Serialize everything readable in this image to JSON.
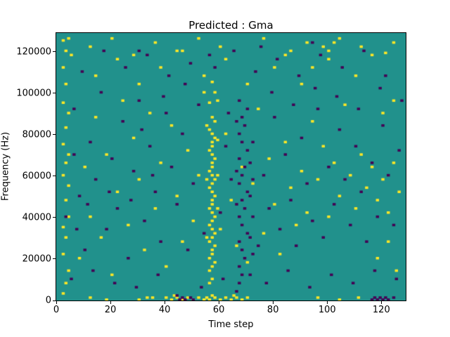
{
  "title": "Predicted : Gma",
  "x_axis": {
    "label": "Time step",
    "ticks": [
      0,
      20,
      40,
      60,
      80,
      100,
      120
    ],
    "max": 129
  },
  "y_axis": {
    "label": "Frequency (Hz)",
    "ticks": [
      0,
      20000,
      40000,
      60000,
      80000,
      100000,
      120000
    ],
    "max": 129000
  },
  "chart_data": {
    "type": "heatmap",
    "title": "Predicted : Gma",
    "xlabel": "Time step",
    "ylabel": "Frequency (Hz)",
    "x_range": [
      0,
      129
    ],
    "y_range": [
      0,
      129000
    ],
    "grid_n": 129,
    "bin_hz": 1000,
    "legend": "none",
    "grid": false,
    "value_colors": {
      "low": "#440154",
      "mid": "#21918c",
      "high": "#fde725"
    },
    "background_value_color": "#21918c",
    "yellow_cells": [
      [
        2,
        3
      ],
      [
        2,
        22
      ],
      [
        2,
        35
      ],
      [
        2,
        60
      ],
      [
        2,
        75
      ],
      [
        2,
        95
      ],
      [
        2,
        112
      ],
      [
        2,
        125
      ],
      [
        3,
        8
      ],
      [
        3,
        30
      ],
      [
        3,
        48
      ],
      [
        3,
        66
      ],
      [
        3,
        83
      ],
      [
        3,
        104
      ],
      [
        3,
        120
      ],
      [
        4,
        14
      ],
      [
        4,
        40
      ],
      [
        4,
        55
      ],
      [
        4,
        70
      ],
      [
        4,
        90
      ],
      [
        55,
        30
      ],
      [
        55,
        58
      ],
      [
        55,
        84
      ],
      [
        56,
        8
      ],
      [
        56,
        14
      ],
      [
        56,
        20
      ],
      [
        56,
        28
      ],
      [
        56,
        36
      ],
      [
        56,
        44
      ],
      [
        56,
        54
      ],
      [
        56,
        62
      ],
      [
        56,
        72
      ],
      [
        56,
        82
      ],
      [
        56,
        95
      ],
      [
        57,
        10
      ],
      [
        57,
        16
      ],
      [
        57,
        22
      ],
      [
        57,
        24
      ],
      [
        57,
        30
      ],
      [
        57,
        34
      ],
      [
        57,
        38
      ],
      [
        57,
        42
      ],
      [
        57,
        46
      ],
      [
        57,
        48
      ],
      [
        57,
        52
      ],
      [
        57,
        56
      ],
      [
        57,
        60
      ],
      [
        57,
        64
      ],
      [
        57,
        66
      ],
      [
        57,
        70
      ],
      [
        57,
        74
      ],
      [
        57,
        76
      ],
      [
        57,
        80
      ],
      [
        57,
        88
      ],
      [
        57,
        105
      ],
      [
        58,
        18
      ],
      [
        58,
        26
      ],
      [
        58,
        32
      ],
      [
        58,
        40
      ],
      [
        58,
        50
      ],
      [
        58,
        58
      ],
      [
        58,
        68
      ],
      [
        58,
        78
      ],
      [
        58,
        86
      ],
      [
        58,
        100
      ],
      [
        59,
        44
      ],
      [
        59,
        60
      ],
      [
        59,
        77
      ],
      [
        59,
        96
      ],
      [
        12,
        1
      ],
      [
        18,
        0
      ],
      [
        30,
        0
      ],
      [
        33,
        1
      ],
      [
        35,
        1
      ],
      [
        40,
        1
      ],
      [
        42,
        0
      ],
      [
        43,
        2
      ],
      [
        44,
        1
      ],
      [
        46,
        0
      ],
      [
        48,
        1
      ],
      [
        50,
        0
      ],
      [
        52,
        1
      ],
      [
        54,
        0
      ],
      [
        55,
        1
      ],
      [
        56,
        0
      ],
      [
        57,
        2
      ],
      [
        58,
        1
      ],
      [
        60,
        0
      ],
      [
        62,
        1
      ],
      [
        64,
        0
      ],
      [
        65,
        2
      ],
      [
        66,
        1
      ],
      [
        68,
        0
      ],
      [
        70,
        1
      ],
      [
        96,
        1
      ],
      [
        104,
        0
      ],
      [
        111,
        1
      ],
      [
        8,
        20
      ],
      [
        10,
        64
      ],
      [
        12,
        40
      ],
      [
        14,
        88
      ],
      [
        16,
        30
      ],
      [
        18,
        70
      ],
      [
        20,
        12
      ],
      [
        22,
        52
      ],
      [
        24,
        96
      ],
      [
        26,
        36
      ],
      [
        28,
        78
      ],
      [
        30,
        58
      ],
      [
        32,
        24
      ],
      [
        34,
        90
      ],
      [
        36,
        44
      ],
      [
        38,
        66
      ],
      [
        40,
        16
      ],
      [
        42,
        84
      ],
      [
        44,
        50
      ],
      [
        46,
        28
      ],
      [
        48,
        72
      ],
      [
        50,
        38
      ],
      [
        52,
        60
      ],
      [
        54,
        100
      ],
      [
        60,
        34
      ],
      [
        62,
        80
      ],
      [
        64,
        48
      ],
      [
        66,
        26
      ],
      [
        68,
        64
      ],
      [
        70,
        18
      ],
      [
        72,
        56
      ],
      [
        74,
        92
      ],
      [
        76,
        32
      ],
      [
        78,
        68
      ],
      [
        80,
        46
      ],
      [
        82,
        22
      ],
      [
        84,
        76
      ],
      [
        86,
        54
      ],
      [
        88,
        36
      ],
      [
        90,
        62
      ],
      [
        92,
        42
      ],
      [
        94,
        86
      ],
      [
        96,
        58
      ],
      [
        98,
        74
      ],
      [
        100,
        40
      ],
      [
        102,
        66
      ],
      [
        104,
        50
      ],
      [
        106,
        94
      ],
      [
        108,
        60
      ],
      [
        110,
        44
      ],
      [
        112,
        70
      ],
      [
        114,
        54
      ],
      [
        116,
        64
      ],
      [
        118,
        48
      ],
      [
        120,
        58
      ],
      [
        122,
        42
      ],
      [
        124,
        66
      ],
      [
        126,
        52
      ],
      [
        118,
        20
      ],
      [
        122,
        28
      ],
      [
        125,
        14
      ],
      [
        110,
        108
      ],
      [
        100,
        116
      ],
      [
        90,
        104
      ],
      [
        80,
        112
      ],
      [
        14,
        108
      ],
      [
        22,
        116
      ],
      [
        30,
        104
      ],
      [
        38,
        112
      ],
      [
        46,
        120
      ],
      [
        54,
        108
      ],
      [
        62,
        116
      ],
      [
        70,
        104
      ],
      [
        86,
        120
      ],
      [
        94,
        112
      ],
      [
        102,
        124
      ],
      [
        5,
        118
      ],
      [
        98,
        122
      ],
      [
        121,
        119
      ],
      [
        124,
        96
      ],
      [
        120,
        90
      ],
      [
        4,
        126
      ],
      [
        12,
        122
      ],
      [
        20,
        126
      ],
      [
        28,
        118
      ],
      [
        36,
        124
      ],
      [
        44,
        120
      ],
      [
        52,
        126
      ],
      [
        60,
        122
      ],
      [
        76,
        126
      ],
      [
        84,
        118
      ],
      [
        92,
        124
      ],
      [
        100,
        120
      ],
      [
        104,
        126
      ],
      [
        112,
        122
      ],
      [
        116,
        118
      ],
      [
        124,
        124
      ]
    ],
    "purple_cells": [
      [
        66,
        4
      ],
      [
        66,
        46
      ],
      [
        66,
        62
      ],
      [
        66,
        86
      ],
      [
        67,
        8
      ],
      [
        67,
        16
      ],
      [
        67,
        28
      ],
      [
        67,
        40
      ],
      [
        67,
        56
      ],
      [
        67,
        68
      ],
      [
        67,
        80
      ],
      [
        67,
        96
      ],
      [
        68,
        12
      ],
      [
        68,
        24
      ],
      [
        68,
        36
      ],
      [
        68,
        48
      ],
      [
        68,
        60
      ],
      [
        68,
        76
      ],
      [
        68,
        88
      ],
      [
        69,
        20
      ],
      [
        69,
        44
      ],
      [
        69,
        64
      ],
      [
        69,
        84
      ],
      [
        70,
        32
      ],
      [
        70,
        52
      ],
      [
        70,
        72
      ],
      [
        70,
        92
      ],
      [
        71,
        12
      ],
      [
        71,
        30
      ],
      [
        71,
        50
      ],
      [
        71,
        66
      ],
      [
        72,
        22
      ],
      [
        72,
        40
      ],
      [
        72,
        58
      ],
      [
        72,
        76
      ],
      [
        44,
        2
      ],
      [
        45,
        0
      ],
      [
        46,
        1
      ],
      [
        47,
        0
      ],
      [
        49,
        1
      ],
      [
        50,
        0
      ],
      [
        116,
        0
      ],
      [
        117,
        1
      ],
      [
        118,
        0
      ],
      [
        119,
        1
      ],
      [
        120,
        0
      ],
      [
        121,
        1
      ],
      [
        122,
        0
      ],
      [
        124,
        1
      ],
      [
        3,
        40
      ],
      [
        5,
        10
      ],
      [
        6,
        70
      ],
      [
        6,
        92
      ],
      [
        7,
        34
      ],
      [
        8,
        50
      ],
      [
        9,
        110
      ],
      [
        10,
        24
      ],
      [
        11,
        46
      ],
      [
        12,
        76
      ],
      [
        13,
        14
      ],
      [
        14,
        58
      ],
      [
        16,
        100
      ],
      [
        17,
        120
      ],
      [
        18,
        34
      ],
      [
        19,
        52
      ],
      [
        20,
        68
      ],
      [
        21,
        8
      ],
      [
        22,
        44
      ],
      [
        24,
        86
      ],
      [
        25,
        112
      ],
      [
        26,
        20
      ],
      [
        27,
        48
      ],
      [
        28,
        62
      ],
      [
        29,
        6
      ],
      [
        30,
        96
      ],
      [
        30,
        120
      ],
      [
        31,
        82
      ],
      [
        32,
        38
      ],
      [
        33,
        118
      ],
      [
        34,
        74
      ],
      [
        35,
        60
      ],
      [
        36,
        52
      ],
      [
        37,
        12
      ],
      [
        38,
        28
      ],
      [
        39,
        98
      ],
      [
        40,
        90
      ],
      [
        41,
        108
      ],
      [
        42,
        64
      ],
      [
        44,
        46
      ],
      [
        46,
        80
      ],
      [
        47,
        104
      ],
      [
        48,
        24
      ],
      [
        49,
        114
      ],
      [
        50,
        56
      ],
      [
        52,
        94
      ],
      [
        53,
        6
      ],
      [
        54,
        32
      ],
      [
        56,
        118
      ],
      [
        58,
        112
      ],
      [
        60,
        42
      ],
      [
        61,
        10
      ],
      [
        62,
        74
      ],
      [
        63,
        90
      ],
      [
        64,
        58
      ],
      [
        65,
        120
      ],
      [
        73,
        110
      ],
      [
        74,
        26
      ],
      [
        75,
        122
      ],
      [
        76,
        60
      ],
      [
        77,
        8
      ],
      [
        78,
        44
      ],
      [
        79,
        100
      ],
      [
        80,
        88
      ],
      [
        81,
        116
      ],
      [
        82,
        34
      ],
      [
        84,
        70
      ],
      [
        85,
        14
      ],
      [
        86,
        48
      ],
      [
        87,
        94
      ],
      [
        88,
        26
      ],
      [
        89,
        108
      ],
      [
        90,
        78
      ],
      [
        92,
        56
      ],
      [
        93,
        6
      ],
      [
        94,
        38
      ],
      [
        94,
        124
      ],
      [
        95,
        102
      ],
      [
        96,
        92
      ],
      [
        97,
        118
      ],
      [
        98,
        30
      ],
      [
        100,
        64
      ],
      [
        101,
        12
      ],
      [
        102,
        46
      ],
      [
        103,
        98
      ],
      [
        104,
        82
      ],
      [
        105,
        112
      ],
      [
        106,
        58
      ],
      [
        108,
        36
      ],
      [
        109,
        8
      ],
      [
        110,
        74
      ],
      [
        111,
        92
      ],
      [
        112,
        52
      ],
      [
        113,
        120
      ],
      [
        114,
        28
      ],
      [
        116,
        66
      ],
      [
        117,
        14
      ],
      [
        118,
        40
      ],
      [
        119,
        102
      ],
      [
        120,
        84
      ],
      [
        121,
        108
      ],
      [
        122,
        60
      ],
      [
        124,
        36
      ],
      [
        125,
        10
      ],
      [
        126,
        72
      ],
      [
        127,
        96
      ]
    ]
  }
}
